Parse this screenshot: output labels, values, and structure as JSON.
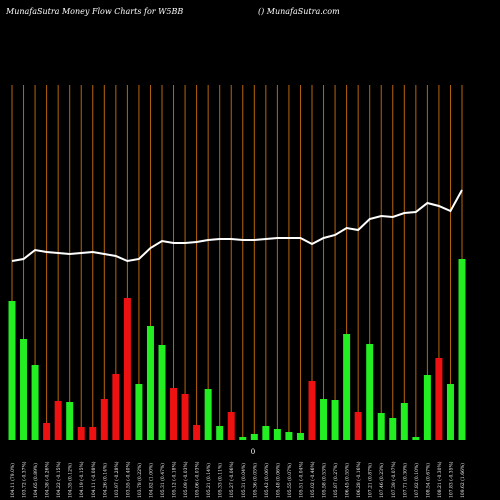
{
  "chart_data": {
    "type": "bar",
    "title": "MunafaSutra  Money Flow  Charts for W5BB",
    "subtitle": "() MunafaSutra.com",
    "zero_label": "0",
    "categories": [
      "104.11 (79.0%)",
      "103.72 (-0.37%)",
      "104.65 (0.89%)",
      "104.38 (-0.26%)",
      "104.22 (-0.15%)",
      "104.35 (0.12%)",
      "104.19 (-0.15%)",
      "104.11 (-0.08%)",
      "104.26 (0.14%)",
      "103.97 (-0.28%)",
      "103.55 (-0.40%)",
      "103.78 (0.22%)",
      "104.82 (1.00%)",
      "105.31 (0.47%)",
      "105.12 (-0.18%)",
      "105.09 (-0.03%)",
      "105.06 (-0.03%)",
      "105.21 (0.14%)",
      "105.33 (0.11%)",
      "105.27 (-0.06%)",
      "105.31 (0.04%)",
      "105.36 (0.05%)",
      "105.42 (0.06%)",
      "105.48 (0.06%)",
      "105.55 (0.07%)",
      "105.51 (-0.04%)",
      "105.02 (-0.46%)",
      "105.58 (0.53%)",
      "105.87 (0.27%)",
      "106.45 (0.55%)",
      "106.28 (-0.16%)",
      "107.21 (0.87%)",
      "107.46 (0.23%)",
      "107.39 (-0.07%)",
      "107.71 (0.30%)",
      "107.82 (0.10%)",
      "108.54 (0.67%)",
      "108.21 (-0.30%)",
      "107.83 (-0.35%)",
      "109.62 (1.66%)"
    ],
    "values": [
      139,
      101,
      75,
      17,
      39,
      38,
      13,
      13,
      41,
      66,
      142,
      56,
      114,
      95,
      52,
      46,
      15,
      51,
      14,
      28,
      3,
      6,
      14,
      11,
      8,
      7,
      59,
      41,
      40,
      106,
      28,
      96,
      27,
      22,
      37,
      3,
      65,
      82,
      56,
      181
    ],
    "bar_colors": [
      "#22ee22",
      "#22ee22",
      "#22ee22",
      "#ee1111",
      "#ee1111",
      "#22ee22",
      "#ee1111",
      "#ee1111",
      "#ee1111",
      "#ee1111",
      "#ee1111",
      "#22ee22",
      "#22ee22",
      "#22ee22",
      "#ee1111",
      "#ee1111",
      "#ee1111",
      "#22ee22",
      "#22ee22",
      "#ee1111",
      "#22ee22",
      "#22ee22",
      "#22ee22",
      "#22ee22",
      "#22ee22",
      "#22ee22",
      "#ee1111",
      "#22ee22",
      "#22ee22",
      "#22ee22",
      "#ee1111",
      "#22ee22",
      "#22ee22",
      "#22ee22",
      "#22ee22",
      "#22ee22",
      "#22ee22",
      "#ee1111",
      "#22ee22",
      "#22ee22"
    ],
    "line": {
      "color": "#ffffff",
      "values": [
        179,
        181,
        190,
        188,
        187,
        186,
        187,
        188,
        186,
        184,
        179,
        181,
        192,
        199,
        197,
        197,
        198,
        200,
        201,
        201,
        200,
        200,
        201,
        202,
        202,
        202,
        196,
        202,
        205,
        212,
        210,
        221,
        224,
        223,
        227,
        228,
        237,
        234,
        229,
        250
      ]
    },
    "ylim": [
      0,
      360
    ],
    "gridline_color": "#b8660b"
  }
}
